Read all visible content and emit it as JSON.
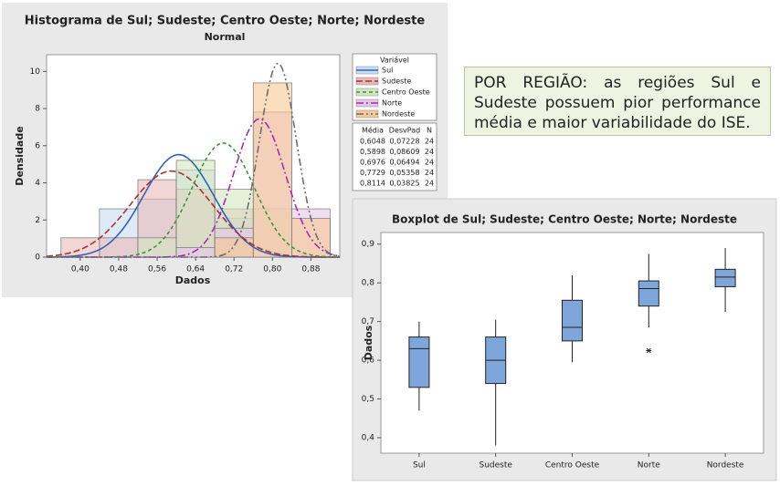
{
  "chart_data": [
    {
      "type": "histogram",
      "title": "Histograma de Sul; Sudeste; Centro Oeste; Norte; Nordeste",
      "subtitle": "Normal",
      "x_label": "Dados",
      "y_label": "Densidade",
      "legend_title": "Variável",
      "stats_headers": [
        "Média",
        "DesvPad",
        "N"
      ],
      "bins": [
        0.36,
        0.44,
        0.52,
        0.6,
        0.68,
        0.76,
        0.84,
        0.92
      ],
      "xlim": [
        0.33,
        0.94
      ],
      "ylim": [
        0,
        10.9
      ],
      "xticks": [
        {
          "value": 0.4,
          "label": "0,40"
        },
        {
          "value": 0.48,
          "label": "0,48"
        },
        {
          "value": 0.56,
          "label": "0,56"
        },
        {
          "value": 0.64,
          "label": "0,64"
        },
        {
          "value": 0.72,
          "label": "0,72"
        },
        {
          "value": 0.8,
          "label": "0,80"
        },
        {
          "value": 0.88,
          "label": "0,88"
        }
      ],
      "yticks": [
        0,
        2,
        4,
        6,
        8,
        10
      ],
      "series": [
        {
          "name": "Sul",
          "color": "#2f64b8",
          "fill": "#c9dcf2",
          "dash": "none",
          "values": [
            0,
            2.6,
            3.13,
            4.69,
            2.08,
            0,
            0
          ],
          "stats": {
            "mean": {
              "value": 0.6048,
              "label": "0,6048"
            },
            "sd": {
              "value": 0.07228,
              "label": "0,07228"
            },
            "n": 24
          }
        },
        {
          "name": "Sudeste",
          "color": "#a83232",
          "fill": "#e9b9b9",
          "dash": "7 3",
          "values": [
            1.04,
            1.04,
            4.17,
            3.65,
            2.6,
            0,
            0
          ],
          "stats": {
            "mean": {
              "value": 0.5898,
              "label": "0,5898"
            },
            "sd": {
              "value": 0.08609,
              "label": "0,08609"
            },
            "n": 24
          }
        },
        {
          "name": "Centro Oeste",
          "color": "#3c963c",
          "fill": "#d3e6bf",
          "dash": "4 3",
          "values": [
            0,
            0,
            1.04,
            5.21,
            3.65,
            2.6,
            0
          ],
          "stats": {
            "mean": {
              "value": 0.6976,
              "label": "0,6976"
            },
            "sd": {
              "value": 0.06494,
              "label": "0,06494"
            },
            "n": 24
          }
        },
        {
          "name": "Norte",
          "color": "#a02fb0",
          "fill": "#e6c6e6",
          "dash": "8 3 2 3",
          "values": [
            0,
            0,
            0,
            0.52,
            1.56,
            7.81,
            2.6
          ],
          "stats": {
            "mean": {
              "value": 0.7729,
              "label": "0,7729"
            },
            "sd": {
              "value": 0.05358,
              "label": "0,05358"
            },
            "n": 24
          }
        },
        {
          "name": "Nordeste",
          "color": "#6e6e6e",
          "fill": "#f6c893",
          "dash": "8 3 2 3 2 3",
          "values": [
            0,
            0,
            0,
            0,
            1.04,
            9.38,
            2.08
          ],
          "stats": {
            "mean": {
              "value": 0.8114,
              "label": "0,8114"
            },
            "sd": {
              "value": 0.03825,
              "label": "0,03825"
            },
            "n": 24
          }
        }
      ]
    },
    {
      "type": "box",
      "title": "Boxplot de Sul; Sudeste; Centro Oeste; Norte; Nordeste",
      "y_label": "Dados",
      "categories": [
        "Sul",
        "Sudeste",
        "Centro Oeste",
        "Norte",
        "Nordeste"
      ],
      "color": "#7ea6da",
      "ylim": [
        0.36,
        0.93
      ],
      "yticks": [
        {
          "value": 0.4,
          "label": "0,4"
        },
        {
          "value": 0.5,
          "label": "0,5"
        },
        {
          "value": 0.6,
          "label": "0,6"
        },
        {
          "value": 0.7,
          "label": "0,7"
        },
        {
          "value": 0.8,
          "label": "0,8"
        },
        {
          "value": 0.9,
          "label": "0,9"
        }
      ],
      "boxes": [
        {
          "min": 0.47,
          "q1": 0.53,
          "median": 0.63,
          "q3": 0.66,
          "max": 0.7,
          "outliers": []
        },
        {
          "min": 0.38,
          "q1": 0.54,
          "median": 0.6,
          "q3": 0.66,
          "max": 0.705,
          "outliers": []
        },
        {
          "min": 0.595,
          "q1": 0.65,
          "median": 0.685,
          "q3": 0.755,
          "max": 0.82,
          "outliers": []
        },
        {
          "min": 0.685,
          "q1": 0.74,
          "median": 0.785,
          "q3": 0.805,
          "max": 0.875,
          "outliers": [
            0.625
          ]
        },
        {
          "min": 0.725,
          "q1": 0.79,
          "median": 0.815,
          "q3": 0.835,
          "max": 0.89,
          "outliers": []
        }
      ]
    }
  ],
  "note": "POR REGIÃO: as regiões Sul e Sudeste possuem pior performance média e maior variabilidade do ISE."
}
